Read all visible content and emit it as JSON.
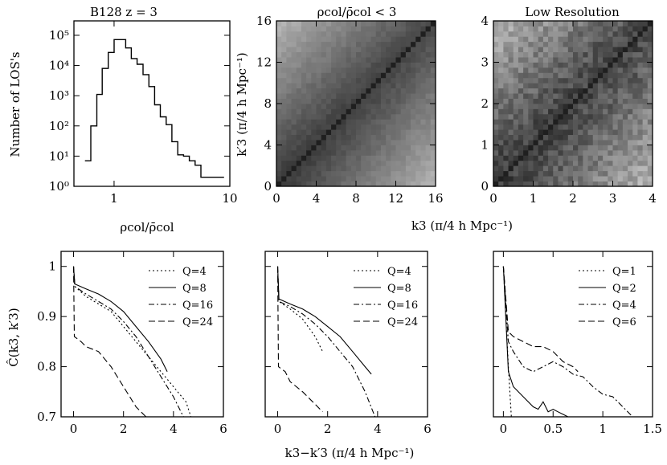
{
  "figure": {
    "title_hist": "B128     z = 3",
    "title_mid": "ρcol/ρ̄col < 3",
    "title_right": "Low Resolution",
    "hist_xlabel": "ρcol/ρ̄col",
    "hist_ylabel": "Number of LOS's",
    "corr_xlabel": "k3  (π/4 h Mpc⁻¹)",
    "corr_ylabel": "k′3  (π/4 h Mpc⁻¹)",
    "bottom_xlabel": "k3−k′3  (π/4 h Mpc⁻¹)",
    "bottom_ylabel": "Ĉ(k3, k′3)"
  },
  "chart_data": [
    {
      "id": "hist",
      "type": "step",
      "xscale": "log",
      "yscale": "log",
      "xlim": [
        0.45,
        10
      ],
      "ylim": [
        1,
        300000
      ],
      "x_ticks": [
        {
          "v": 1,
          "t": "1"
        },
        {
          "v": 10,
          "t": "10"
        }
      ],
      "y_ticks": [
        {
          "v": 1,
          "t": "10⁰"
        },
        {
          "v": 10,
          "t": "10¹"
        },
        {
          "v": 100,
          "t": "10²"
        },
        {
          "v": 1000,
          "t": "10³"
        },
        {
          "v": 10000,
          "t": "10⁴"
        },
        {
          "v": 100000,
          "t": "10⁵"
        }
      ],
      "edges": [
        0.56,
        0.63,
        0.71,
        0.79,
        0.89,
        1.0,
        1.12,
        1.26,
        1.41,
        1.58,
        1.78,
        2.0,
        2.24,
        2.51,
        2.82,
        3.16,
        3.55,
        3.98,
        4.47,
        5.01,
        5.62,
        6.31,
        7.08,
        7.94,
        8.91
      ],
      "counts": [
        7,
        100,
        1100,
        8000,
        27000,
        72000,
        72000,
        38000,
        17000,
        11000,
        5000,
        2000,
        500,
        200,
        110,
        30,
        11,
        10,
        7,
        5,
        2,
        2,
        2,
        2
      ]
    },
    {
      "id": "corr_mid",
      "type": "heatmap",
      "xlim": [
        0,
        16
      ],
      "ylim": [
        0,
        16
      ],
      "x_ticks": [
        {
          "v": 0,
          "t": "0"
        },
        {
          "v": 4,
          "t": "4"
        },
        {
          "v": 8,
          "t": "8"
        },
        {
          "v": 12,
          "t": "12"
        },
        {
          "v": 16,
          "t": "16"
        }
      ],
      "y_ticks": [
        {
          "v": 0,
          "t": "0"
        },
        {
          "v": 4,
          "t": "4"
        },
        {
          "v": 8,
          "t": "8"
        },
        {
          "v": 12,
          "t": "12"
        },
        {
          "v": 16,
          "t": "16"
        }
      ],
      "cells": 32,
      "noise": 0.03,
      "diagonal": "dark"
    },
    {
      "id": "corr_right",
      "type": "heatmap",
      "xlim": [
        0,
        4
      ],
      "ylim": [
        0,
        4
      ],
      "x_ticks": [
        {
          "v": 0,
          "t": "0"
        },
        {
          "v": 1,
          "t": "1"
        },
        {
          "v": 2,
          "t": "2"
        },
        {
          "v": 3,
          "t": "3"
        },
        {
          "v": 4,
          "t": "4"
        }
      ],
      "y_ticks": [
        {
          "v": 0,
          "t": "0"
        },
        {
          "v": 1,
          "t": "1"
        },
        {
          "v": 2,
          "t": "2"
        },
        {
          "v": 3,
          "t": "3"
        },
        {
          "v": 4,
          "t": "4"
        }
      ],
      "cells": 32,
      "noise": 0.1,
      "diagonal": "dark"
    },
    {
      "id": "bottom_left",
      "type": "line",
      "xlim": [
        -0.5,
        6
      ],
      "ylim": [
        0.7,
        1.03
      ],
      "x_ticks": [
        {
          "v": 0,
          "t": "0"
        },
        {
          "v": 2,
          "t": "2"
        },
        {
          "v": 4,
          "t": "4"
        },
        {
          "v": 6,
          "t": "6"
        }
      ],
      "y_ticks": [
        {
          "v": 0.7,
          "t": "0.7"
        },
        {
          "v": 0.8,
          "t": "0.8"
        },
        {
          "v": 0.9,
          "t": "0.9"
        },
        {
          "v": 1.0,
          "t": "1"
        }
      ],
      "series": [
        {
          "name": "Q=4",
          "dash": "2,3",
          "points": [
            [
              0,
              1.0
            ],
            [
              0.05,
              0.96
            ],
            [
              0.5,
              0.94
            ],
            [
              1.0,
              0.925
            ],
            [
              1.5,
              0.91
            ],
            [
              2.0,
              0.88
            ],
            [
              2.5,
              0.85
            ],
            [
              3.0,
              0.82
            ],
            [
              3.5,
              0.79
            ],
            [
              4.0,
              0.76
            ],
            [
              4.5,
              0.73
            ],
            [
              4.7,
              0.7
            ]
          ]
        },
        {
          "name": "Q=8",
          "dash": "",
          "points": [
            [
              0,
              1.0
            ],
            [
              0.05,
              0.965
            ],
            [
              0.5,
              0.955
            ],
            [
              1.0,
              0.945
            ],
            [
              1.5,
              0.93
            ],
            [
              2.0,
              0.91
            ],
            [
              2.5,
              0.88
            ],
            [
              3.0,
              0.85
            ],
            [
              3.5,
              0.815
            ],
            [
              3.75,
              0.79
            ]
          ]
        },
        {
          "name": "Q=16",
          "dash": "7,3,2,3",
          "points": [
            [
              0,
              1.0
            ],
            [
              0.05,
              0.96
            ],
            [
              0.5,
              0.945
            ],
            [
              1.0,
              0.93
            ],
            [
              1.5,
              0.915
            ],
            [
              2.0,
              0.89
            ],
            [
              2.5,
              0.86
            ],
            [
              3.0,
              0.82
            ],
            [
              3.5,
              0.78
            ],
            [
              4.0,
              0.74
            ],
            [
              4.4,
              0.7
            ]
          ]
        },
        {
          "name": "Q=24",
          "dash": "8,4",
          "points": [
            [
              0,
              1.0
            ],
            [
              0.03,
              0.86
            ],
            [
              0.3,
              0.85
            ],
            [
              0.5,
              0.84
            ],
            [
              1.0,
              0.83
            ],
            [
              1.5,
              0.8
            ],
            [
              2.0,
              0.76
            ],
            [
              2.5,
              0.72
            ],
            [
              2.9,
              0.7
            ]
          ]
        }
      ]
    },
    {
      "id": "bottom_mid",
      "type": "line",
      "xlim": [
        -0.5,
        6
      ],
      "ylim": [
        0.7,
        1.03
      ],
      "x_ticks": [
        {
          "v": 0,
          "t": "0"
        },
        {
          "v": 2,
          "t": "2"
        },
        {
          "v": 4,
          "t": "4"
        },
        {
          "v": 6,
          "t": "6"
        }
      ],
      "y_ticks": [
        {
          "v": 0.7,
          "t": ""
        },
        {
          "v": 0.8,
          "t": ""
        },
        {
          "v": 0.9,
          "t": ""
        },
        {
          "v": 1.0,
          "t": ""
        }
      ],
      "series": [
        {
          "name": "Q=4",
          "dash": "2,3",
          "points": [
            [
              0,
              1.0
            ],
            [
              0.05,
              0.93
            ],
            [
              0.5,
              0.915
            ],
            [
              1.0,
              0.895
            ],
            [
              1.5,
              0.86
            ],
            [
              1.8,
              0.83
            ]
          ]
        },
        {
          "name": "Q=8",
          "dash": "",
          "points": [
            [
              0,
              1.0
            ],
            [
              0.05,
              0.935
            ],
            [
              0.5,
              0.925
            ],
            [
              1.0,
              0.915
            ],
            [
              1.5,
              0.9
            ],
            [
              2.0,
              0.88
            ],
            [
              2.5,
              0.86
            ],
            [
              3.0,
              0.83
            ],
            [
              3.5,
              0.8
            ],
            [
              3.75,
              0.785
            ]
          ]
        },
        {
          "name": "Q=16",
          "dash": "7,3,2,3",
          "points": [
            [
              0,
              1.0
            ],
            [
              0.05,
              0.93
            ],
            [
              0.5,
              0.92
            ],
            [
              1.0,
              0.905
            ],
            [
              1.5,
              0.885
            ],
            [
              2.0,
              0.86
            ],
            [
              2.5,
              0.83
            ],
            [
              3.0,
              0.8
            ],
            [
              3.5,
              0.75
            ],
            [
              3.9,
              0.7
            ]
          ]
        },
        {
          "name": "Q=24",
          "dash": "8,4",
          "points": [
            [
              0,
              1.0
            ],
            [
              0.03,
              0.8
            ],
            [
              0.3,
              0.79
            ],
            [
              0.5,
              0.77
            ],
            [
              1.0,
              0.75
            ],
            [
              1.5,
              0.725
            ],
            [
              1.8,
              0.71
            ]
          ]
        }
      ]
    },
    {
      "id": "bottom_right",
      "type": "line",
      "xlim": [
        -0.1,
        1.5
      ],
      "ylim": [
        0.7,
        1.03
      ],
      "x_ticks": [
        {
          "v": 0,
          "t": "0"
        },
        {
          "v": 0.5,
          "t": "0.5"
        },
        {
          "v": 1.0,
          "t": "1"
        },
        {
          "v": 1.5,
          "t": "1.5"
        }
      ],
      "y_ticks": [
        {
          "v": 0.7,
          "t": ""
        },
        {
          "v": 0.8,
          "t": ""
        },
        {
          "v": 0.9,
          "t": ""
        },
        {
          "v": 1.0,
          "t": ""
        }
      ],
      "series": [
        {
          "name": "Q=1",
          "dash": "2,3",
          "points": [
            [
              0,
              1.0
            ],
            [
              0.05,
              0.8
            ],
            [
              0.08,
              0.7
            ]
          ]
        },
        {
          "name": "Q=2",
          "dash": "",
          "points": [
            [
              0,
              1.0
            ],
            [
              0.05,
              0.79
            ],
            [
              0.1,
              0.76
            ],
            [
              0.2,
              0.74
            ],
            [
              0.3,
              0.72
            ],
            [
              0.35,
              0.715
            ],
            [
              0.4,
              0.73
            ],
            [
              0.45,
              0.71
            ],
            [
              0.5,
              0.715
            ],
            [
              0.55,
              0.71
            ],
            [
              0.6,
              0.705
            ],
            [
              0.65,
              0.7
            ]
          ]
        },
        {
          "name": "Q=4",
          "dash": "7,3,2,3",
          "points": [
            [
              0,
              1.0
            ],
            [
              0.05,
              0.85
            ],
            [
              0.1,
              0.83
            ],
            [
              0.2,
              0.8
            ],
            [
              0.3,
              0.79
            ],
            [
              0.4,
              0.8
            ],
            [
              0.5,
              0.81
            ],
            [
              0.6,
              0.8
            ],
            [
              0.7,
              0.785
            ],
            [
              0.8,
              0.78
            ],
            [
              0.9,
              0.76
            ],
            [
              1.0,
              0.745
            ],
            [
              1.1,
              0.74
            ],
            [
              1.2,
              0.72
            ],
            [
              1.3,
              0.7
            ]
          ]
        },
        {
          "name": "Q=6",
          "dash": "8,4",
          "points": [
            [
              0,
              1.0
            ],
            [
              0.05,
              0.87
            ],
            [
              0.1,
              0.86
            ],
            [
              0.2,
              0.85
            ],
            [
              0.3,
              0.84
            ],
            [
              0.4,
              0.84
            ],
            [
              0.5,
              0.83
            ],
            [
              0.6,
              0.81
            ],
            [
              0.7,
              0.8
            ],
            [
              0.75,
              0.79
            ]
          ]
        }
      ]
    }
  ]
}
